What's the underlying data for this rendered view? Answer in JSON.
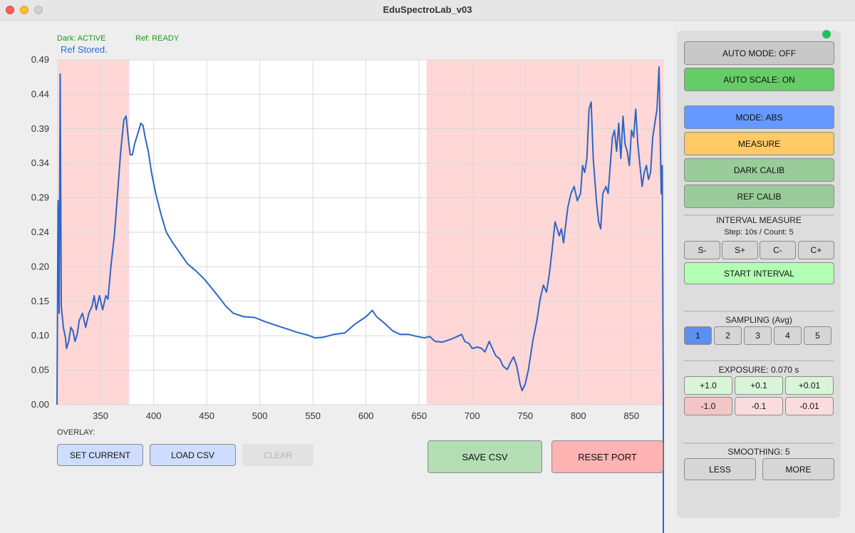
{
  "window": {
    "title": "EduSpectroLab_v03"
  },
  "status": {
    "dark": "Dark: ACTIVE",
    "ref": "Ref: READY",
    "stored": "Ref Stored.",
    "color_ok": "#1a9a1a",
    "indicator_color": "#1fc25a"
  },
  "overlay": {
    "label": "OVERLAY:",
    "set_current": "SET CURRENT",
    "load_csv": "LOAD CSV",
    "clear": "CLEAR"
  },
  "actions": {
    "save_csv": "SAVE CSV",
    "reset_port": "RESET PORT"
  },
  "panel": {
    "auto_mode": "AUTO MODE: OFF",
    "auto_scale": "AUTO SCALE: ON",
    "mode": "MODE: ABS",
    "measure": "MEASURE",
    "dark_calib": "DARK CALIB",
    "ref_calib": "REF CALIB",
    "interval_title": "INTERVAL MEASURE",
    "interval_info": "Step: 10s / Count: 5",
    "interval_buttons": [
      "S-",
      "S+",
      "C-",
      "C+"
    ],
    "start_interval": "START INTERVAL",
    "sampling_title": "SAMPLING (Avg)",
    "sampling_options": [
      "1",
      "2",
      "3",
      "4",
      "5"
    ],
    "sampling_selected": "1",
    "exposure_title": "EXPOSURE: 0.070 s",
    "exposure_plus": [
      "+1.0",
      "+0.1",
      "+0.01"
    ],
    "exposure_minus": [
      "-1.0",
      "-0.1",
      "-0.01"
    ],
    "smoothing_title": "SMOOTHING: 5",
    "less": "LESS",
    "more": "MORE"
  },
  "chart_data": {
    "type": "line",
    "title": "",
    "xlabel": "",
    "ylabel": "",
    "xlim": [
      309,
      880
    ],
    "ylim": [
      0,
      0.49
    ],
    "x_ticks": [
      350,
      400,
      450,
      500,
      550,
      600,
      650,
      700,
      750,
      800,
      850
    ],
    "y_ticks": [
      "0.00",
      "0.05",
      "0.10",
      "0.15",
      "0.20",
      "0.24",
      "0.29",
      "0.34",
      "0.39",
      "0.44",
      "0.49"
    ],
    "grid": true,
    "line_color": "#2e66c4",
    "shade_color": "#ffd7d7",
    "shaded_regions": [
      [
        309,
        377
      ],
      [
        657,
        880
      ]
    ],
    "series": [
      {
        "points": [
          [
            309,
            0.0
          ],
          [
            310,
            0.29
          ],
          [
            311,
            0.13
          ],
          [
            312,
            0.47
          ],
          [
            313,
            0.14
          ],
          [
            315,
            0.11
          ],
          [
            317,
            0.095
          ],
          [
            318,
            0.08
          ],
          [
            320,
            0.09
          ],
          [
            322,
            0.11
          ],
          [
            324,
            0.105
          ],
          [
            326,
            0.09
          ],
          [
            328,
            0.1
          ],
          [
            330,
            0.12
          ],
          [
            333,
            0.13
          ],
          [
            336,
            0.11
          ],
          [
            339,
            0.13
          ],
          [
            342,
            0.14
          ],
          [
            344,
            0.155
          ],
          [
            346,
            0.135
          ],
          [
            349,
            0.155
          ],
          [
            352,
            0.135
          ],
          [
            355,
            0.155
          ],
          [
            357,
            0.15
          ],
          [
            360,
            0.2
          ],
          [
            363,
            0.24
          ],
          [
            366,
            0.3
          ],
          [
            369,
            0.36
          ],
          [
            372,
            0.405
          ],
          [
            374,
            0.41
          ],
          [
            376,
            0.38
          ],
          [
            378,
            0.355
          ],
          [
            380,
            0.355
          ],
          [
            382,
            0.37
          ],
          [
            384,
            0.38
          ],
          [
            386,
            0.39
          ],
          [
            388,
            0.4
          ],
          [
            390,
            0.397
          ],
          [
            392,
            0.38
          ],
          [
            395,
            0.36
          ],
          [
            398,
            0.33
          ],
          [
            402,
            0.3
          ],
          [
            407,
            0.27
          ],
          [
            412,
            0.245
          ],
          [
            418,
            0.23
          ],
          [
            425,
            0.215
          ],
          [
            432,
            0.2
          ],
          [
            440,
            0.19
          ],
          [
            448,
            0.178
          ],
          [
            455,
            0.165
          ],
          [
            462,
            0.152
          ],
          [
            468,
            0.14
          ],
          [
            475,
            0.13
          ],
          [
            485,
            0.125
          ],
          [
            495,
            0.124
          ],
          [
            505,
            0.118
          ],
          [
            515,
            0.113
          ],
          [
            525,
            0.108
          ],
          [
            535,
            0.103
          ],
          [
            545,
            0.099
          ],
          [
            552,
            0.095
          ],
          [
            560,
            0.096
          ],
          [
            570,
            0.1
          ],
          [
            580,
            0.102
          ],
          [
            590,
            0.115
          ],
          [
            600,
            0.125
          ],
          [
            606,
            0.134
          ],
          [
            610,
            0.125
          ],
          [
            618,
            0.115
          ],
          [
            625,
            0.105
          ],
          [
            632,
            0.1
          ],
          [
            640,
            0.1
          ],
          [
            648,
            0.097
          ],
          [
            655,
            0.095
          ],
          [
            660,
            0.097
          ],
          [
            665,
            0.09
          ],
          [
            672,
            0.089
          ],
          [
            680,
            0.093
          ],
          [
            686,
            0.097
          ],
          [
            690,
            0.1
          ],
          [
            693,
            0.09
          ],
          [
            697,
            0.087
          ],
          [
            700,
            0.08
          ],
          [
            705,
            0.082
          ],
          [
            709,
            0.08
          ],
          [
            712,
            0.075
          ],
          [
            716,
            0.09
          ],
          [
            719,
            0.08
          ],
          [
            722,
            0.07
          ],
          [
            726,
            0.065
          ],
          [
            729,
            0.055
          ],
          [
            733,
            0.05
          ],
          [
            736,
            0.06
          ],
          [
            739,
            0.068
          ],
          [
            742,
            0.055
          ],
          [
            745,
            0.03
          ],
          [
            747,
            0.02
          ],
          [
            750,
            0.03
          ],
          [
            753,
            0.05
          ],
          [
            757,
            0.09
          ],
          [
            761,
            0.12
          ],
          [
            764,
            0.15
          ],
          [
            767,
            0.17
          ],
          [
            770,
            0.16
          ],
          [
            773,
            0.19
          ],
          [
            776,
            0.23
          ],
          [
            778,
            0.26
          ],
          [
            780,
            0.25
          ],
          [
            782,
            0.24
          ],
          [
            784,
            0.25
          ],
          [
            786,
            0.23
          ],
          [
            788,
            0.255
          ],
          [
            790,
            0.28
          ],
          [
            793,
            0.3
          ],
          [
            796,
            0.31
          ],
          [
            799,
            0.29
          ],
          [
            802,
            0.3
          ],
          [
            804,
            0.34
          ],
          [
            806,
            0.33
          ],
          [
            808,
            0.35
          ],
          [
            810,
            0.42
          ],
          [
            812,
            0.43
          ],
          [
            814,
            0.35
          ],
          [
            817,
            0.29
          ],
          [
            819,
            0.26
          ],
          [
            821,
            0.25
          ],
          [
            823,
            0.3
          ],
          [
            826,
            0.31
          ],
          [
            828,
            0.3
          ],
          [
            830,
            0.34
          ],
          [
            832,
            0.38
          ],
          [
            834,
            0.39
          ],
          [
            836,
            0.36
          ],
          [
            838,
            0.4
          ],
          [
            840,
            0.35
          ],
          [
            842,
            0.41
          ],
          [
            844,
            0.37
          ],
          [
            846,
            0.36
          ],
          [
            848,
            0.34
          ],
          [
            850,
            0.39
          ],
          [
            852,
            0.38
          ],
          [
            854,
            0.42
          ],
          [
            856,
            0.37
          ],
          [
            858,
            0.34
          ],
          [
            860,
            0.31
          ],
          [
            862,
            0.33
          ],
          [
            864,
            0.34
          ],
          [
            866,
            0.32
          ],
          [
            868,
            0.33
          ],
          [
            870,
            0.38
          ],
          [
            872,
            0.4
          ],
          [
            874,
            0.42
          ],
          [
            876,
            0.48
          ],
          [
            878,
            0.3
          ],
          [
            879,
            0.34
          ],
          [
            880,
            0.0
          ]
        ]
      }
    ]
  }
}
